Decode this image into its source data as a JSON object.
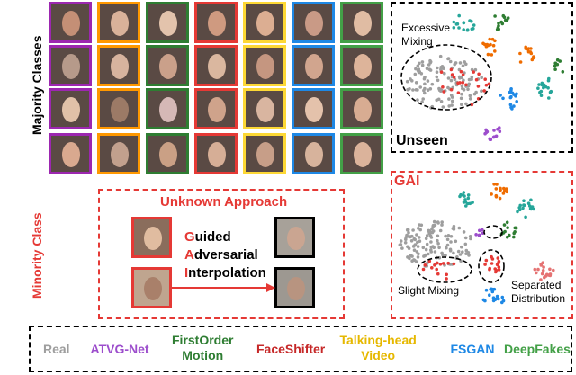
{
  "labels": {
    "majority": "Majority Classes",
    "minority": "Minority Class",
    "unknown_approach": "Unknown Approach",
    "gai_lines": [
      {
        "initial": "G",
        "rest": "uided"
      },
      {
        "initial": "A",
        "rest": "dversarial"
      },
      {
        "initial": "I",
        "rest": "nterpolation"
      }
    ],
    "unseen_title": "Unseen",
    "excessive_mixing": [
      "Excessive",
      "Mixing"
    ],
    "gai_title": "GAI",
    "slight_mixing": "Slight Mixing",
    "separated_distribution": [
      "Separated",
      "Distribution"
    ]
  },
  "legend": [
    {
      "label": "Real",
      "color": "#9e9e9e"
    },
    {
      "label": "ATVG-Net",
      "color": "#9c4dcc"
    },
    {
      "label": "FirstOrder\nMotion",
      "color": "#2e7d32"
    },
    {
      "label": "FaceShifter",
      "color": "#c62828"
    },
    {
      "label": "Talking-head\nVideo",
      "color": "#e6b800"
    },
    {
      "label": "FSGAN",
      "color": "#1e88e5"
    },
    {
      "label": "DeepFakes",
      "color": "#43a047"
    }
  ],
  "column_colors": [
    "#9c27b0",
    "#ff9800",
    "#2e7d32",
    "#e53935",
    "#fdd835",
    "#1e88e5",
    "#43a047"
  ],
  "face_tones": [
    [
      "#c48f76",
      "#d9b29a",
      "#e3c3ac",
      "#cf9a80",
      "#dcae92",
      "#c99a86",
      "#e0bca3"
    ],
    [
      "#b69a8a",
      "#d7b39e",
      "#caa08a",
      "#dab79f",
      "#c59680",
      "#d1a58e",
      "#ddb49a"
    ],
    [
      "#e1c1a8",
      "#9c7a66",
      "#d5b8b6",
      "#cfa38b",
      "#d9b5a0",
      "#e4c2ab",
      "#d8ac92"
    ],
    [
      "#d9a98f",
      "#c2a08d",
      "#caa085",
      "#d6ae96",
      "#c79e88",
      "#d7b39c",
      "#dbb39b"
    ]
  ],
  "cluster_colors": {
    "real": "#9e9e9e",
    "red": "#e53935",
    "green": "#2e7d32",
    "orange": "#ef6c00",
    "purple": "#9c4dcc",
    "blue": "#1e88e5",
    "teal": "#26a69a",
    "pink": "#e57373"
  }
}
